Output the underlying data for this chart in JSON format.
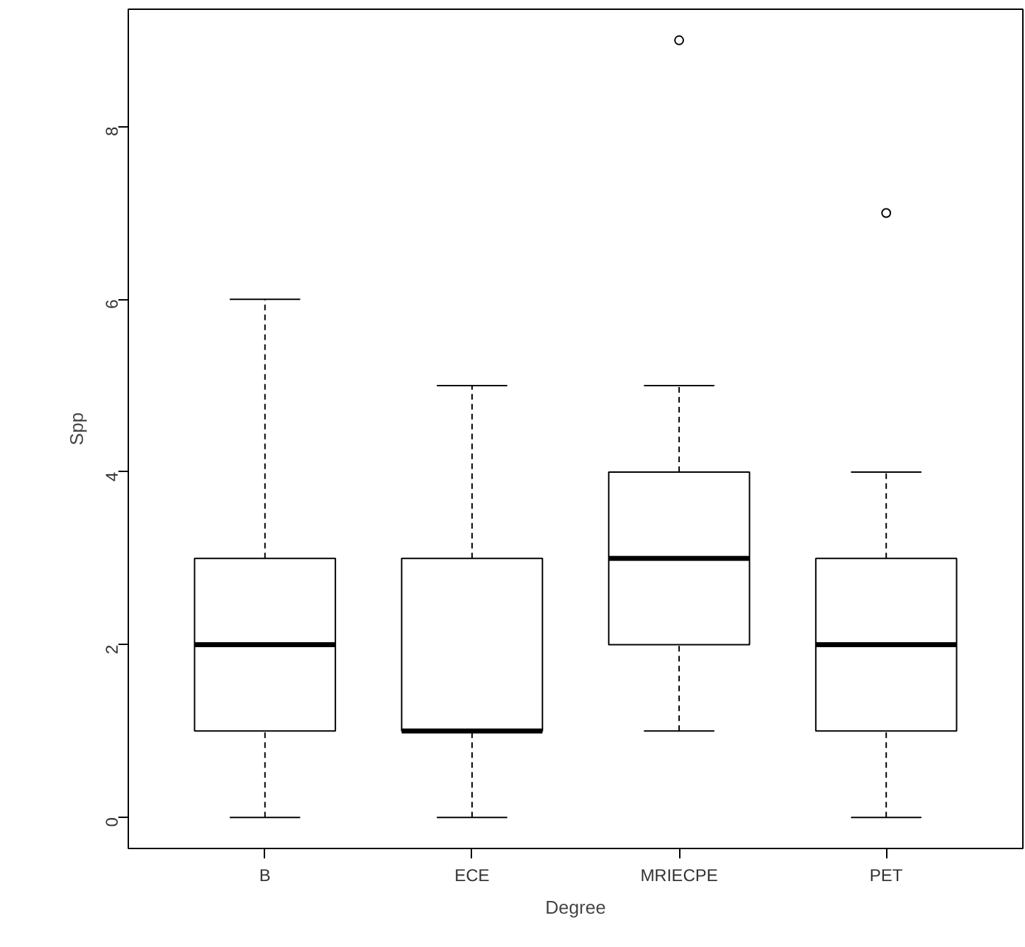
{
  "chart_data": {
    "type": "box",
    "xlabel": "Degree",
    "ylabel": "Spp",
    "categories": [
      "B",
      "ECE",
      "MRIECPE",
      "PET"
    ],
    "boxes": [
      {
        "low": 0,
        "q1": 1,
        "median": 2,
        "q3": 3,
        "high": 6
      },
      {
        "low": 0,
        "q1": 1,
        "median": 1,
        "q3": 3,
        "high": 5
      },
      {
        "low": 1,
        "q1": 2,
        "median": 3,
        "q3": 4,
        "high": 5,
        "outliers": [
          9
        ]
      },
      {
        "low": 0,
        "q1": 1,
        "median": 2,
        "q3": 3,
        "high": 4,
        "outliers": [
          7
        ]
      }
    ],
    "ylim": [
      -0.36,
      9.36
    ],
    "yticks": [
      0,
      2,
      4,
      6,
      8
    ]
  }
}
